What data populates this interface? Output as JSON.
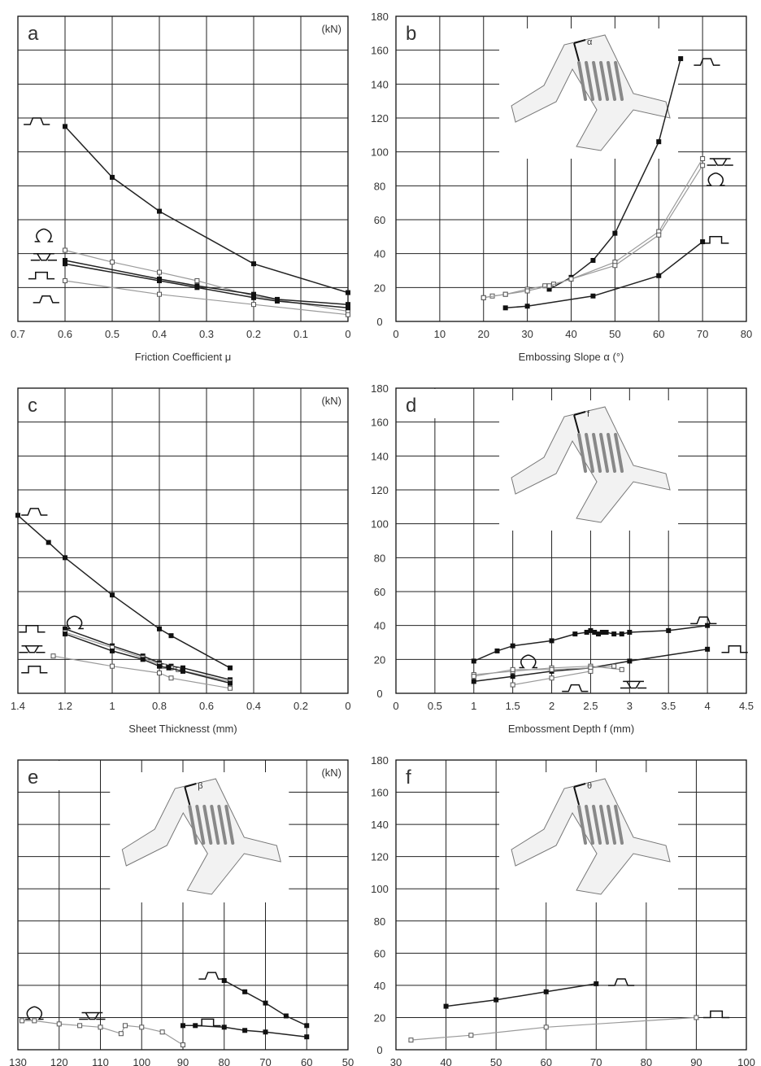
{
  "figure": {
    "unit_label": "(kN)"
  },
  "chart_data": [
    {
      "id": "a",
      "panel_label": "a",
      "type": "line",
      "xlabel": "Friction Coefficient μ",
      "ylabel": "",
      "show_unit": true,
      "xlim": [
        0.7,
        0.0
      ],
      "ylim": [
        0,
        180
      ],
      "x_ticks": [
        "0.7",
        "0.6",
        "0.5",
        "0.4",
        "0.3",
        "0.2",
        "0.1",
        "0"
      ],
      "x_tick_values": [
        0.7,
        0.6,
        0.5,
        0.4,
        0.3,
        0.2,
        0.1,
        0.0
      ],
      "grid": true,
      "series": [
        {
          "profile": "trapezoid",
          "style": "dark",
          "x": [
            0.6,
            0.5,
            0.4,
            0.2,
            0.0
          ],
          "y": [
            115,
            85,
            65,
            34,
            17
          ]
        },
        {
          "profile": "omega",
          "style": "light",
          "x": [
            0.6,
            0.5,
            0.4,
            0.32,
            0.2,
            0.0
          ],
          "y": [
            42,
            35,
            29,
            24,
            15,
            6
          ]
        },
        {
          "profile": "inverted-trapezoid",
          "style": "dark",
          "x": [
            0.6,
            0.4,
            0.32,
            0.2,
            0.15,
            0.0
          ],
          "y": [
            36,
            25,
            21,
            16,
            13,
            10
          ]
        },
        {
          "profile": "hat",
          "style": "dark",
          "x": [
            0.6,
            0.4,
            0.32,
            0.2,
            0.15,
            0.0
          ],
          "y": [
            34,
            24,
            20,
            14,
            12,
            8
          ]
        },
        {
          "profile": "trapezoid-small",
          "style": "light",
          "x": [
            0.6,
            0.4,
            0.2,
            0.0
          ],
          "y": [
            24,
            16,
            10,
            4
          ]
        }
      ],
      "legend_glyphs": [
        {
          "profile": "trapezoid",
          "at_x": 0.66,
          "at_y": 120
        },
        {
          "profile": "omega",
          "at_x": 0.645,
          "at_y": 51
        },
        {
          "profile": "inverted-trapezoid",
          "at_x": 0.645,
          "at_y": 40
        },
        {
          "profile": "hat",
          "at_x": 0.65,
          "at_y": 29
        },
        {
          "profile": "trapezoid",
          "at_x": 0.64,
          "at_y": 15
        }
      ]
    },
    {
      "id": "b",
      "panel_label": "b",
      "type": "line",
      "xlabel": "Embossing Slope α (°)",
      "ylabel": "",
      "show_unit": false,
      "xlim": [
        0,
        80
      ],
      "ylim": [
        0,
        180
      ],
      "x_ticks": [
        "0",
        "10",
        "20",
        "30",
        "40",
        "50",
        "60",
        "70",
        "80"
      ],
      "x_tick_values": [
        0,
        10,
        20,
        30,
        40,
        50,
        60,
        70,
        80
      ],
      "y_ticks": [
        "0",
        "20",
        "40",
        "60",
        "80",
        "100",
        "120",
        "140",
        "160",
        "180"
      ],
      "y_tick_values": [
        0,
        20,
        40,
        60,
        80,
        100,
        120,
        140,
        160,
        180
      ],
      "grid": true,
      "inset": {
        "symbol": "α"
      },
      "series": [
        {
          "profile": "trapezoid",
          "style": "dark",
          "x": [
            35,
            40,
            45,
            50,
            60,
            65
          ],
          "y": [
            19,
            26,
            36,
            52,
            106,
            155
          ]
        },
        {
          "profile": "inverted-trapezoid",
          "style": "light",
          "x": [
            20,
            22,
            25,
            30,
            34,
            36,
            40,
            50,
            60,
            70
          ],
          "y": [
            14,
            15,
            16,
            19,
            21,
            22,
            25,
            35,
            53,
            96
          ]
        },
        {
          "profile": "omega",
          "style": "light",
          "x": [
            20,
            25,
            30,
            35,
            40,
            50,
            60,
            70
          ],
          "y": [
            14,
            16,
            18,
            21,
            25,
            33,
            51,
            92
          ]
        },
        {
          "profile": "hat",
          "style": "dark",
          "x": [
            25,
            30,
            45,
            60,
            70
          ],
          "y": [
            8,
            9,
            15,
            27,
            47
          ]
        }
      ],
      "legend_glyphs": [
        {
          "profile": "trapezoid",
          "at_x": 71,
          "at_y": 155
        },
        {
          "profile": "inverted-trapezoid",
          "at_x": 74,
          "at_y": 96
        },
        {
          "profile": "omega",
          "at_x": 73,
          "at_y": 84
        },
        {
          "profile": "hat",
          "at_x": 73,
          "at_y": 50
        }
      ]
    },
    {
      "id": "c",
      "panel_label": "c",
      "type": "line",
      "xlabel": "Sheet Thicknesst (mm)",
      "ylabel": "",
      "show_unit": true,
      "xlim": [
        1.4,
        0.0
      ],
      "ylim": [
        0,
        180
      ],
      "x_ticks": [
        "1.4",
        "1.2",
        "1",
        "0.8",
        "0.6",
        "0.4",
        "0.2",
        "0"
      ],
      "x_tick_values": [
        1.4,
        1.2,
        1.0,
        0.8,
        0.6,
        0.4,
        0.2,
        0.0
      ],
      "grid": true,
      "series": [
        {
          "profile": "trapezoid",
          "style": "dark",
          "x": [
            1.4,
            1.27,
            1.2,
            1.0,
            0.8,
            0.75,
            0.5
          ],
          "y": [
            105,
            89,
            80,
            58,
            38,
            34,
            15
          ]
        },
        {
          "profile": "hat",
          "style": "dark",
          "x": [
            1.2,
            1.0,
            0.87,
            0.8,
            0.75,
            0.7,
            0.5
          ],
          "y": [
            38,
            28,
            22,
            18,
            16,
            15,
            8
          ]
        },
        {
          "profile": "omega",
          "style": "light",
          "x": [
            1.2,
            1.0,
            0.87,
            0.8,
            0.78,
            0.75,
            0.72,
            0.5
          ],
          "y": [
            36,
            27,
            21,
            17,
            16,
            15,
            14,
            7
          ]
        },
        {
          "profile": "inverted-trapezoid",
          "style": "dark",
          "x": [
            1.2,
            1.0,
            0.87,
            0.8,
            0.76,
            0.7,
            0.5
          ],
          "y": [
            35,
            25,
            20,
            16,
            15,
            13,
            6
          ]
        },
        {
          "profile": "trapezoid-small",
          "style": "light",
          "x": [
            1.25,
            1.0,
            0.8,
            0.75,
            0.5
          ],
          "y": [
            22,
            16,
            12,
            9,
            3
          ]
        }
      ],
      "legend_glyphs": [
        {
          "profile": "trapezoid",
          "at_x": 1.33,
          "at_y": 109
        },
        {
          "profile": "hat",
          "at_x": 1.34,
          "at_y": 40
        },
        {
          "profile": "omega",
          "at_x": 1.16,
          "at_y": 42
        },
        {
          "profile": "inverted-trapezoid",
          "at_x": 1.34,
          "at_y": 28
        },
        {
          "profile": "hat",
          "at_x": 1.33,
          "at_y": 16
        }
      ]
    },
    {
      "id": "d",
      "panel_label": "d",
      "type": "line",
      "xlabel": "Embossment Depth f (mm)",
      "ylabel": "",
      "show_unit": false,
      "xlim": [
        0,
        4.5
      ],
      "ylim": [
        0,
        180
      ],
      "x_ticks": [
        "0",
        "0.5",
        "1",
        "1.5",
        "2",
        "2.5",
        "3",
        "3.5",
        "4",
        "4.5"
      ],
      "x_tick_values": [
        0,
        0.5,
        1,
        1.5,
        2,
        2.5,
        3,
        3.5,
        4,
        4.5
      ],
      "y_ticks": [
        "0",
        "20",
        "40",
        "60",
        "80",
        "100",
        "120",
        "140",
        "160",
        "180"
      ],
      "y_tick_values": [
        0,
        20,
        40,
        60,
        80,
        100,
        120,
        140,
        160,
        180
      ],
      "grid": true,
      "inset": {
        "symbol": "f"
      },
      "series": [
        {
          "profile": "trapezoid",
          "style": "dark",
          "x": [
            1,
            1.3,
            1.5,
            2,
            2.3,
            2.45,
            2.5,
            2.55,
            2.6,
            2.65,
            2.7,
            2.8,
            2.9,
            3,
            3.5,
            4
          ],
          "y": [
            19,
            25,
            28,
            31,
            35,
            36,
            37,
            36,
            35,
            36,
            36,
            35,
            35,
            36,
            37,
            40
          ]
        },
        {
          "profile": "hat",
          "style": "dark",
          "x": [
            1,
            1.5,
            2,
            2.5,
            3,
            4
          ],
          "y": [
            7,
            10,
            13,
            15,
            19,
            26
          ]
        },
        {
          "profile": "omega",
          "style": "light",
          "x": [
            1,
            1.5,
            2,
            2.5,
            2.9
          ],
          "y": [
            11,
            13,
            15,
            16,
            14
          ]
        },
        {
          "profile": "inverted-trapezoid",
          "style": "light",
          "x": [
            1,
            1.5,
            2,
            2.5,
            2.8
          ],
          "y": [
            10,
            14,
            14,
            15,
            16
          ]
        },
        {
          "profile": "trapezoid-small",
          "style": "light",
          "x": [
            1.5,
            2,
            2.5
          ],
          "y": [
            5,
            9,
            13
          ]
        }
      ],
      "legend_glyphs": [
        {
          "profile": "trapezoid",
          "at_x": 3.95,
          "at_y": 45
        },
        {
          "profile": "hat",
          "at_x": 4.35,
          "at_y": 28
        },
        {
          "profile": "omega",
          "at_x": 1.7,
          "at_y": 19
        },
        {
          "profile": "trapezoid",
          "at_x": 2.3,
          "at_y": 5
        },
        {
          "profile": "inverted-trapezoid",
          "at_x": 3.05,
          "at_y": 7
        }
      ]
    },
    {
      "id": "e",
      "panel_label": "e",
      "type": "line",
      "xlabel": "",
      "ylabel": "",
      "show_unit": true,
      "xlim": [
        130,
        50
      ],
      "ylim": [
        0,
        180
      ],
      "x_ticks": [
        "130",
        "120",
        "110",
        "100",
        "90",
        "80",
        "70",
        "60",
        "50"
      ],
      "x_tick_values": [
        130,
        120,
        110,
        100,
        90,
        80,
        70,
        60,
        50
      ],
      "grid": true,
      "inset": {
        "symbol": "β"
      },
      "series": [
        {
          "profile": "trapezoid",
          "style": "dark",
          "x": [
            80,
            75,
            70,
            65,
            60
          ],
          "y": [
            43,
            36,
            29,
            21,
            15
          ]
        },
        {
          "profile": "hat",
          "style": "dark",
          "x": [
            90,
            87,
            80,
            75,
            70,
            60
          ],
          "y": [
            15,
            15,
            14,
            12,
            11,
            8
          ]
        },
        {
          "profile": "omega",
          "style": "light",
          "x": [
            129,
            126,
            120,
            115,
            110,
            105,
            104,
            100,
            95,
            90
          ],
          "y": [
            18,
            18,
            16,
            15,
            14,
            10,
            15,
            14,
            11,
            3
          ]
        }
      ],
      "legend_glyphs": [
        {
          "profile": "trapezoid",
          "at_x": 83,
          "at_y": 48
        },
        {
          "profile": "hat",
          "at_x": 84,
          "at_y": 19
        },
        {
          "profile": "omega",
          "at_x": 126,
          "at_y": 23
        },
        {
          "profile": "inverted-trapezoid",
          "at_x": 112,
          "at_y": 23
        }
      ]
    },
    {
      "id": "f",
      "panel_label": "f",
      "type": "line",
      "xlabel": "",
      "ylabel": "",
      "show_unit": false,
      "xlim": [
        30,
        100
      ],
      "ylim": [
        0,
        180
      ],
      "x_ticks": [
        "30",
        "40",
        "50",
        "60",
        "70",
        "80",
        "90",
        "100"
      ],
      "x_tick_values": [
        30,
        40,
        50,
        60,
        70,
        80,
        90,
        100
      ],
      "y_ticks": [
        "0",
        "20",
        "40",
        "60",
        "80",
        "100",
        "120",
        "140",
        "160",
        "180"
      ],
      "y_tick_values": [
        0,
        20,
        40,
        60,
        80,
        100,
        120,
        140,
        160,
        180
      ],
      "grid": true,
      "inset": {
        "symbol": "θ"
      },
      "series": [
        {
          "profile": "trapezoid",
          "style": "dark",
          "x": [
            40,
            50,
            60,
            70
          ],
          "y": [
            27,
            31,
            36,
            41
          ]
        },
        {
          "profile": "hat",
          "style": "light",
          "x": [
            33,
            45,
            60,
            90
          ],
          "y": [
            6,
            9,
            14,
            20
          ]
        }
      ],
      "legend_glyphs": [
        {
          "profile": "trapezoid",
          "at_x": 75,
          "at_y": 44
        },
        {
          "profile": "hat",
          "at_x": 94,
          "at_y": 24
        }
      ]
    }
  ]
}
